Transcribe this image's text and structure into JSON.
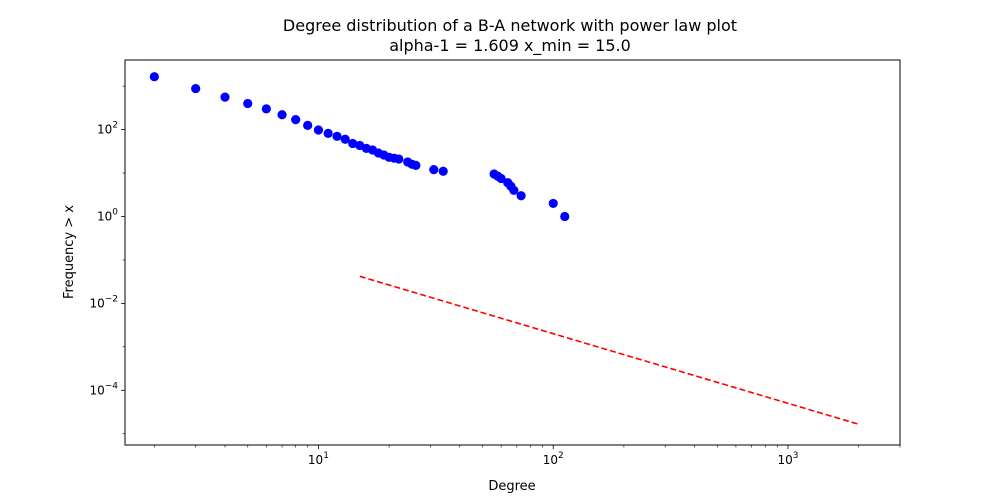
{
  "chart_data": {
    "type": "scatter",
    "title": "Degree distribution of a B-A network with power law plot",
    "subtitle": "alpha-1 = 1.609 x_min = 15.0",
    "xlabel": "Degree",
    "ylabel": "Frequency > x",
    "xscale": "log",
    "yscale": "log",
    "xlim": [
      1.5,
      3000
    ],
    "ylim": [
      5.5e-06,
      4000
    ],
    "grid": false,
    "legend": "none",
    "xticks": [
      {
        "value": 10,
        "base": "10",
        "exp": "1"
      },
      {
        "value": 100,
        "base": "10",
        "exp": "2"
      },
      {
        "value": 1000,
        "base": "10",
        "exp": "3"
      }
    ],
    "yticks": [
      {
        "value": 0.0001,
        "base": "10",
        "exp": "−4"
      },
      {
        "value": 0.01,
        "base": "10",
        "exp": "−2"
      },
      {
        "value": 1,
        "base": "10",
        "exp": "0"
      },
      {
        "value": 100,
        "base": "10",
        "exp": "2"
      }
    ],
    "series": [
      {
        "kind": "scatter",
        "color": "#0000ff",
        "points": [
          [
            2,
            1650
          ],
          [
            3,
            880
          ],
          [
            4,
            560
          ],
          [
            5,
            400
          ],
          [
            6,
            300
          ],
          [
            7,
            220
          ],
          [
            8,
            170
          ],
          [
            9,
            125
          ],
          [
            10,
            98
          ],
          [
            11,
            82
          ],
          [
            12,
            70
          ],
          [
            13,
            60
          ],
          [
            14,
            48
          ],
          [
            15,
            43
          ],
          [
            16,
            37
          ],
          [
            17,
            34
          ],
          [
            18,
            29
          ],
          [
            19,
            26
          ],
          [
            20,
            23
          ],
          [
            21,
            22
          ],
          [
            22,
            21
          ],
          [
            24,
            18
          ],
          [
            25,
            16
          ],
          [
            26,
            15
          ],
          [
            31,
            12
          ],
          [
            34,
            11
          ],
          [
            56,
            9.5
          ],
          [
            58,
            8.5
          ],
          [
            60,
            7.5
          ],
          [
            64,
            6
          ],
          [
            66,
            5
          ],
          [
            68,
            4
          ],
          [
            73,
            3
          ],
          [
            100,
            2
          ],
          [
            112,
            1
          ]
        ]
      },
      {
        "kind": "line",
        "color": "#ff0000",
        "dash": "dashed",
        "x_min": 15.0,
        "alpha_minus_1": 1.609,
        "points": [
          [
            15,
            0.042
          ],
          [
            2000,
            1.65e-05
          ]
        ]
      }
    ]
  }
}
